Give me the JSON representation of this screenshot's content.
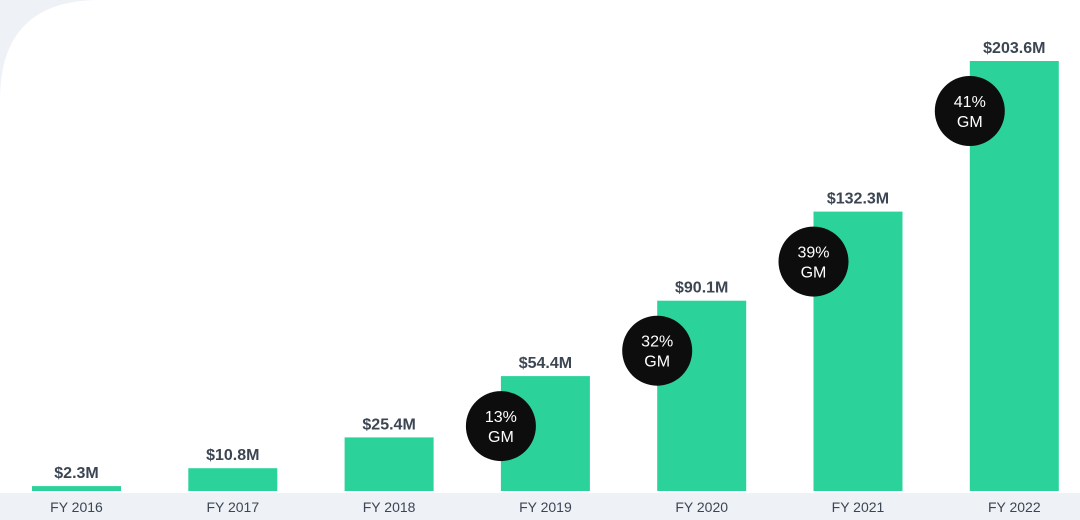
{
  "chart_data": {
    "type": "bar",
    "categories": [
      "FY 2016",
      "FY 2017",
      "FY 2018",
      "FY 2019",
      "FY 2020",
      "FY 2021",
      "FY 2022"
    ],
    "values": [
      2.3,
      10.8,
      25.4,
      54.4,
      90.1,
      132.3,
      203.6
    ],
    "value_labels": [
      "$2.3M",
      "$10.8M",
      "$25.4M",
      "$54.4M",
      "$90.1M",
      "$132.3M",
      "$203.6M"
    ],
    "gross_margin": [
      null,
      null,
      null,
      "13%",
      "32%",
      "39%",
      "41%"
    ],
    "gross_margin_suffix": "GM",
    "unit": "$M",
    "ylim": [
      0,
      203.6
    ],
    "grid": false,
    "colors": {
      "bar": "#2bd39a",
      "badge": "#0d0d0d",
      "badge_text": "#ffffff",
      "label": "#3c4653",
      "background": "#ffffff",
      "axis_band": "#eef1f6"
    }
  }
}
